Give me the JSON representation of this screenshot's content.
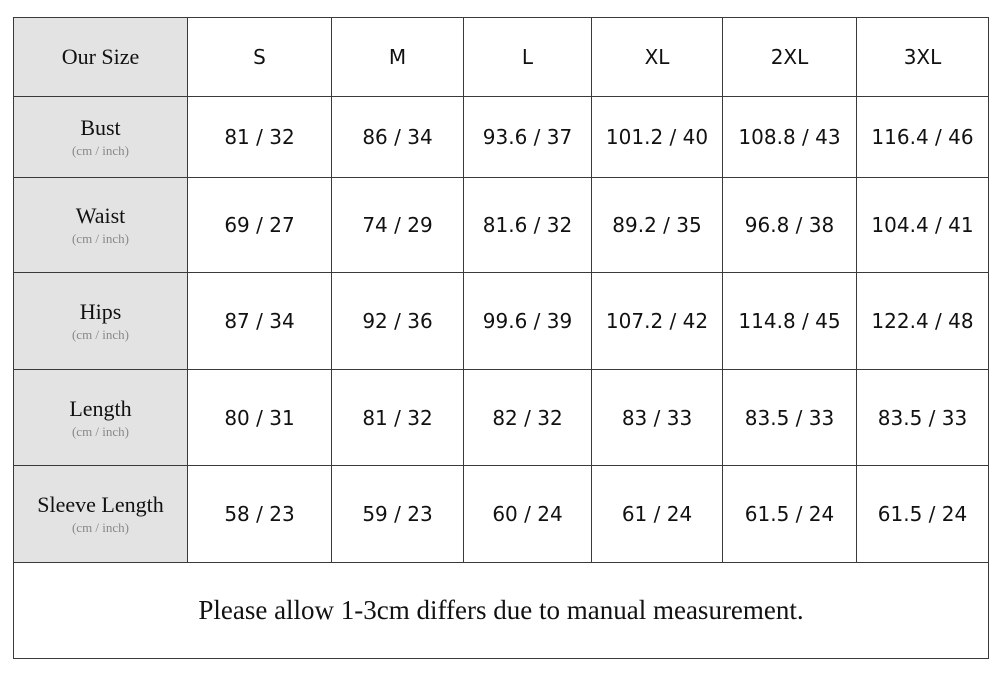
{
  "table": {
    "header": [
      "Our Size",
      "S",
      "M",
      "L",
      "XL",
      "2XL",
      "3XL"
    ],
    "rows": [
      {
        "label": "Bust",
        "unit": "(cm / inch)",
        "cells": [
          "81 / 32",
          "86 / 34",
          "93.6 / 37",
          "101.2 / 40",
          "108.8 / 43",
          "116.4 / 46"
        ]
      },
      {
        "label": "Waist",
        "unit": "(cm / inch)",
        "cells": [
          "69 / 27",
          "74 / 29",
          "81.6 / 32",
          "89.2 / 35",
          "96.8 / 38",
          "104.4 / 41"
        ]
      },
      {
        "label": "Hips",
        "unit": "(cm / inch)",
        "cells": [
          "87 / 34",
          "92 / 36",
          "99.6 / 39",
          "107.2 / 42",
          "114.8 / 45",
          "122.4 / 48"
        ]
      },
      {
        "label": "Length",
        "unit": "(cm / inch)",
        "cells": [
          "80 / 31",
          "81 / 32",
          "82 / 32",
          "83 / 33",
          "83.5 / 33",
          "83.5 / 33"
        ]
      },
      {
        "label": "Sleeve Length",
        "unit": "(cm / inch)",
        "cells": [
          "58 / 23",
          "59 / 23",
          "60 / 24",
          "61 / 24",
          "61.5 / 24",
          "61.5 / 24"
        ]
      }
    ],
    "note": "Please allow 1-3cm differs due to manual measurement."
  }
}
